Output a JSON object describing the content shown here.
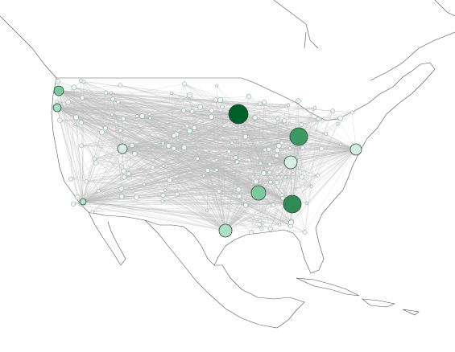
{
  "nodes": [
    {
      "size": 12,
      "color": "#00602a"
    },
    {
      "size": 11,
      "color": "#3a9a62"
    },
    {
      "size": 11,
      "color": "#2f8a55"
    },
    {
      "size": 9,
      "color": "#7cc8a0"
    },
    {
      "size": 8,
      "color": "#aee0c6"
    },
    {
      "size": 8,
      "color": "#d8f1e6"
    },
    {
      "size": 7,
      "color": "#d0ede0"
    },
    {
      "size": 6,
      "color": "#d6f0e4"
    },
    {
      "size": 6,
      "color": "#78c99c"
    },
    {
      "size": 5,
      "color": "#a6dcc0"
    },
    {
      "size": 4,
      "color": "#b6e4cc"
    }
  ]
}
